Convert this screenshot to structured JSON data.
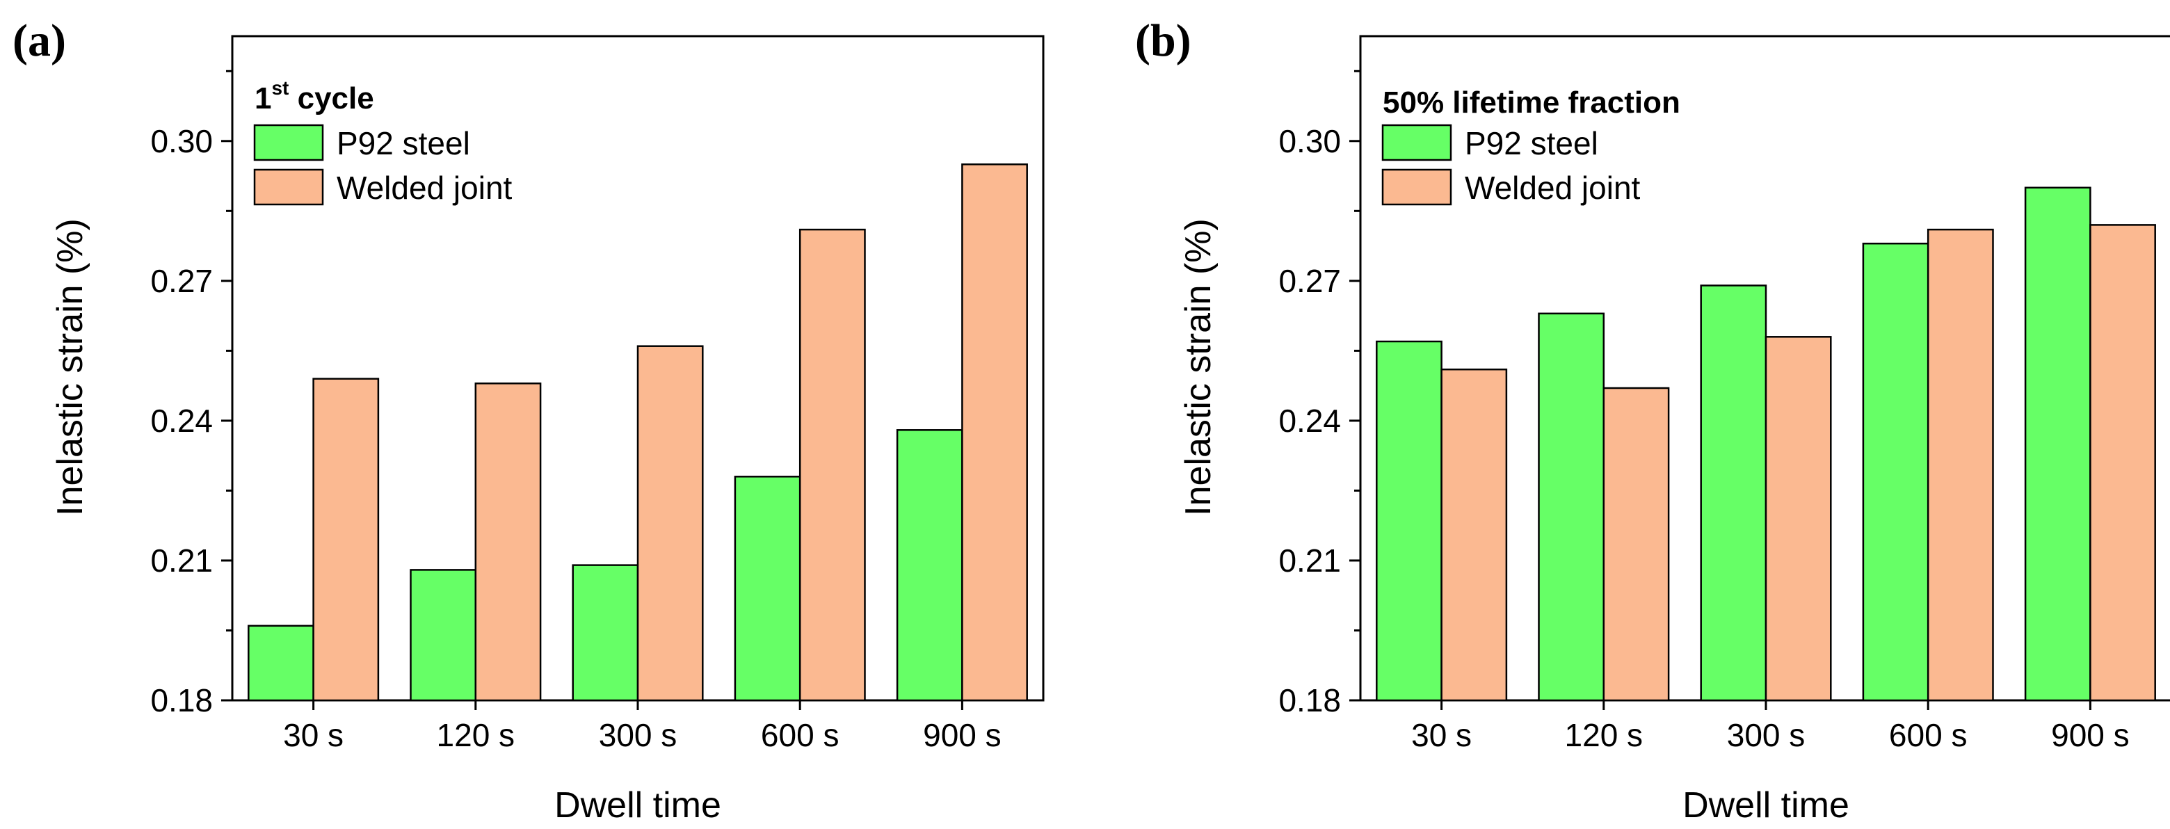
{
  "chart_data": [
    {
      "type": "bar",
      "panel_label": "(a)",
      "legend_title": "1",
      "legend_title_sup": "st",
      "legend_title_rest": " cycle",
      "categories": [
        "30 s",
        "120 s",
        "300 s",
        "600 s",
        "900 s"
      ],
      "series": [
        {
          "name": "P92 steel",
          "color": "#66ff66",
          "values": [
            0.196,
            0.208,
            0.209,
            0.228,
            0.238
          ]
        },
        {
          "name": "Welded joint",
          "color": "#fbb991",
          "values": [
            0.249,
            0.248,
            0.256,
            0.281,
            0.295
          ]
        }
      ],
      "xlabel": "Dwell time",
      "ylabel": "Inelastic strain (%)",
      "ylim": [
        0.18,
        0.3225
      ],
      "yticks": [
        "0.18",
        "0.21",
        "0.24",
        "0.27",
        "0.30"
      ],
      "ytick_values": [
        0.18,
        0.21,
        0.24,
        0.27,
        0.3
      ],
      "legend_position": "top-left"
    },
    {
      "type": "bar",
      "panel_label": "(b)",
      "legend_title": "50% lifetime fraction",
      "legend_title_sup": "",
      "legend_title_rest": "",
      "categories": [
        "30 s",
        "120 s",
        "300 s",
        "600 s",
        "900 s"
      ],
      "series": [
        {
          "name": "P92 steel",
          "color": "#66ff66",
          "values": [
            0.257,
            0.263,
            0.269,
            0.278,
            0.29
          ]
        },
        {
          "name": "Welded joint",
          "color": "#fbb991",
          "values": [
            0.251,
            0.247,
            0.258,
            0.281,
            0.282
          ]
        }
      ],
      "xlabel": "Dwell time",
      "ylabel": "Inelastic strain (%)",
      "ylim": [
        0.18,
        0.3225
      ],
      "yticks": [
        "0.18",
        "0.21",
        "0.24",
        "0.27",
        "0.30"
      ],
      "ytick_values": [
        0.18,
        0.21,
        0.24,
        0.27,
        0.3
      ],
      "legend_position": "top-left"
    }
  ]
}
